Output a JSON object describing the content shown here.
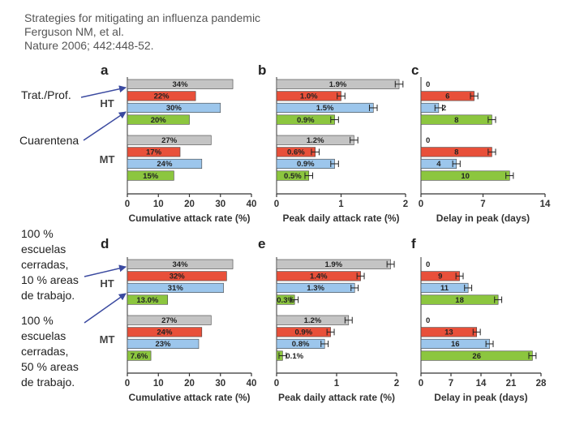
{
  "citation": {
    "line1": "Strategies for mitigating an influenza pandemic",
    "line2": "Ferguson NM, et al.",
    "line3": "Nature 2006; 442:448-52."
  },
  "annotations": {
    "trat": "Trat./Prof.",
    "cuarentena": "Cuarentena",
    "closure10": [
      "100 %",
      "escuelas",
      "cerradas,",
      "10 % areas",
      "de trabajo."
    ],
    "closure50": [
      "100 %",
      "escuelas",
      "cerradas,",
      "50 % areas",
      "de trabajo."
    ]
  },
  "colors": {
    "series": [
      "#c4c4c4",
      "#e8503a",
      "#9cc6ec",
      "#8cc63f"
    ],
    "arrow": "#3b4aa0",
    "axis": "#333333"
  },
  "chart_data": [
    {
      "panel": "a",
      "type": "bar",
      "orientation": "horizontal",
      "xlabel": "Cumulative attack rate (%)",
      "xlim": [
        0,
        40
      ],
      "ticks": [
        "0",
        "10",
        "20",
        "30",
        "40"
      ],
      "tickValues": [
        0,
        10,
        20,
        30,
        40
      ],
      "groups": [
        {
          "name": "HT",
          "values": [
            34,
            22,
            30,
            20
          ],
          "labels": [
            "34%",
            "22%",
            "30%",
            "20%"
          ]
        },
        {
          "name": "MT",
          "values": [
            27,
            17,
            24,
            15
          ],
          "labels": [
            "27%",
            "17%",
            "24%",
            "15%"
          ]
        }
      ],
      "labelPos": "inside",
      "errorbars": false
    },
    {
      "panel": "b",
      "type": "bar",
      "orientation": "horizontal",
      "xlabel": "Peak daily attack rate (%)",
      "xlim": [
        0,
        2
      ],
      "ticks": [
        "0",
        "1",
        "2"
      ],
      "tickValues": [
        0,
        1,
        2
      ],
      "groups": [
        {
          "name": "HT",
          "values": [
            1.9,
            1.0,
            1.5,
            0.9
          ],
          "labels": [
            "1.9%",
            "1.0%",
            "1.5%",
            "0.9%"
          ]
        },
        {
          "name": "MT",
          "values": [
            1.2,
            0.6,
            0.9,
            0.5
          ],
          "labels": [
            "1.2%",
            "0.6%",
            "0.9%",
            "0.5%"
          ]
        }
      ],
      "labelPos": "inside",
      "errorbars": true
    },
    {
      "panel": "c",
      "type": "bar",
      "orientation": "horizontal",
      "xlabel": "Delay in peak (days)",
      "xlim": [
        0,
        14
      ],
      "ticks": [
        "0",
        "7",
        "14"
      ],
      "tickValues": [
        0,
        7,
        14
      ],
      "groups": [
        {
          "name": "HT",
          "values": [
            0,
            6,
            2,
            8
          ],
          "labels": [
            "0",
            "6",
            "2",
            "8"
          ]
        },
        {
          "name": "MT",
          "values": [
            0,
            8,
            4,
            10
          ],
          "labels": [
            "0",
            "8",
            "4",
            "10"
          ]
        }
      ],
      "labelPos": "inside",
      "errorbars": true
    },
    {
      "panel": "d",
      "type": "bar",
      "orientation": "horizontal",
      "xlabel": "Cumulative attack rate (%)",
      "xlim": [
        0,
        40
      ],
      "ticks": [
        "0",
        "10",
        "20",
        "30",
        "40"
      ],
      "tickValues": [
        0,
        10,
        20,
        30,
        40
      ],
      "groups": [
        {
          "name": "HT",
          "values": [
            34,
            32,
            31,
            13.0
          ],
          "labels": [
            "34%",
            "32%",
            "31%",
            "13.0%"
          ]
        },
        {
          "name": "MT",
          "values": [
            27,
            24,
            23,
            7.6
          ],
          "labels": [
            "27%",
            "24%",
            "23%",
            "7.6%"
          ]
        }
      ],
      "labelPos": "inside",
      "errorbars": false
    },
    {
      "panel": "e",
      "type": "bar",
      "orientation": "horizontal",
      "xlabel": "Peak daily attack rate (%)",
      "xlim": [
        0,
        2
      ],
      "ticks": [
        "0",
        "1",
        "2"
      ],
      "tickValues": [
        0,
        1,
        2
      ],
      "groups": [
        {
          "name": "HT",
          "values": [
            1.9,
            1.4,
            1.3,
            0.3
          ],
          "labels": [
            "1.9%",
            "1.4%",
            "1.3%",
            "0.3%"
          ]
        },
        {
          "name": "MT",
          "values": [
            1.2,
            0.9,
            0.8,
            0.1
          ],
          "labels": [
            "1.2%",
            "0.9%",
            "0.8%",
            "0.1%"
          ]
        }
      ],
      "labelPos": "inside",
      "errorbars": true
    },
    {
      "panel": "f",
      "type": "bar",
      "orientation": "horizontal",
      "xlabel": "Delay in peak (days)",
      "xlim": [
        0,
        28
      ],
      "ticks": [
        "0",
        "7",
        "14",
        "21",
        "28"
      ],
      "tickValues": [
        0,
        7,
        14,
        21,
        28
      ],
      "groups": [
        {
          "name": "HT",
          "values": [
            0,
            9,
            11,
            18
          ],
          "labels": [
            "0",
            "9",
            "11",
            "18"
          ]
        },
        {
          "name": "MT",
          "values": [
            0,
            13,
            16,
            26
          ],
          "labels": [
            "0",
            "13",
            "16",
            "26"
          ]
        }
      ],
      "labelPos": "inside",
      "errorbars": true
    }
  ]
}
